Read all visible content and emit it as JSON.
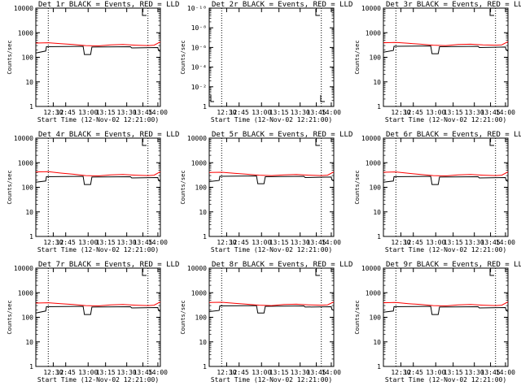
{
  "figure": {
    "background": "#ffffff",
    "events_color": "#000000",
    "lld_color": "#ff0000"
  },
  "chart_data": [
    {
      "type": "line",
      "title": "Det 1r BLACK = Events, RED = LLD",
      "xlabel": "Start Time (12-Nov-02 12:21:00)",
      "ylabel": "Counts/sec",
      "scale": "log",
      "ylim": [
        1,
        10000
      ],
      "yticks": [
        "1",
        "10",
        "100",
        "1000",
        "10000"
      ],
      "xlim": [
        0,
        100
      ],
      "xticks": [
        "12:30",
        "12:45",
        "13:00",
        "13:15",
        "13:30",
        "13:45",
        "14:00"
      ],
      "xtick_pos": [
        14,
        24,
        42,
        56,
        73,
        86,
        98
      ],
      "vlines": [
        10,
        90
      ],
      "series": [
        {
          "name": "Events",
          "x": [
            0,
            8,
            8.5,
            38,
            39,
            44,
            45,
            76,
            77,
            98,
            98.5,
            100
          ],
          "y": [
            150,
            180,
            270,
            280,
            130,
            130,
            260,
            270,
            240,
            250,
            190,
            170
          ]
        },
        {
          "name": "LLD",
          "x": [
            0,
            10,
            20,
            30,
            40,
            50,
            60,
            70,
            80,
            90,
            95,
            100
          ],
          "y": [
            380,
            390,
            360,
            330,
            300,
            290,
            320,
            330,
            310,
            300,
            310,
            420
          ]
        }
      ]
    },
    {
      "type": "line",
      "title": "Det 2r BLACK = Events, RED = LLD",
      "xlabel": "Start Time (12-Nov-02 12:21:00)",
      "ylabel": "Counts/sec",
      "scale": "log",
      "ylim": [
        1,
        1e-10
      ],
      "yticks": [
        "1",
        "10⁻²",
        "10⁻⁴",
        "10⁻⁶",
        "10⁻⁸",
        "10⁻¹⁰"
      ],
      "xlim": [
        0,
        100
      ],
      "xticks": [
        "12:30",
        "12:45",
        "13:00",
        "13:15",
        "13:30",
        "13:45",
        "14:00"
      ],
      "xtick_pos": [
        14,
        24,
        42,
        56,
        73,
        86,
        98
      ],
      "vlines": [
        10,
        90
      ],
      "series": []
    },
    {
      "type": "line",
      "title": "Det 3r BLACK = Events, RED = LLD",
      "xlabel": "Start Time (12-Nov-02 12:21:00)",
      "ylabel": "Counts/sec",
      "scale": "log",
      "ylim": [
        1,
        10000
      ],
      "yticks": [
        "1",
        "10",
        "100",
        "1000",
        "10000"
      ],
      "xlim": [
        0,
        100
      ],
      "xticks": [
        "12:30",
        "12:45",
        "13:00",
        "13:15",
        "13:30",
        "13:45",
        "14:00"
      ],
      "xtick_pos": [
        14,
        24,
        42,
        56,
        73,
        86,
        98
      ],
      "vlines": [
        10,
        90
      ],
      "series": [
        {
          "name": "Events",
          "x": [
            0,
            8,
            8.5,
            38,
            39,
            44,
            45,
            76,
            77,
            98,
            98.5,
            100
          ],
          "y": [
            160,
            190,
            280,
            290,
            140,
            140,
            270,
            280,
            250,
            260,
            200,
            180
          ]
        },
        {
          "name": "LLD",
          "x": [
            0,
            10,
            20,
            30,
            40,
            50,
            60,
            70,
            80,
            90,
            95,
            100
          ],
          "y": [
            390,
            400,
            370,
            340,
            310,
            300,
            330,
            340,
            320,
            310,
            320,
            430
          ]
        }
      ]
    },
    {
      "type": "line",
      "title": "Det 4r BLACK = Events, RED = LLD",
      "xlabel": "Start Time (12-Nov-02 12:21:00)",
      "ylabel": "Counts/sec",
      "scale": "log",
      "ylim": [
        1,
        10000
      ],
      "yticks": [
        "1",
        "10",
        "100",
        "1000",
        "10000"
      ],
      "xlim": [
        0,
        100
      ],
      "xticks": [
        "12:30",
        "12:45",
        "13:00",
        "13:15",
        "13:30",
        "13:45",
        "14:00"
      ],
      "xtick_pos": [
        14,
        24,
        42,
        56,
        73,
        86,
        98
      ],
      "vlines": [
        10,
        90
      ],
      "series": [
        {
          "name": "Events",
          "x": [
            0,
            8,
            8.5,
            38,
            39,
            44,
            45,
            76,
            77,
            98,
            98.5,
            100
          ],
          "y": [
            160,
            180,
            270,
            280,
            130,
            130,
            260,
            270,
            240,
            250,
            190,
            170
          ]
        },
        {
          "name": "LLD",
          "x": [
            0,
            10,
            20,
            30,
            40,
            50,
            60,
            70,
            80,
            90,
            95,
            100
          ],
          "y": [
            420,
            430,
            380,
            340,
            300,
            290,
            320,
            330,
            310,
            300,
            310,
            430
          ]
        }
      ]
    },
    {
      "type": "line",
      "title": "Det 5r BLACK = Events, RED = LLD",
      "xlabel": "Start Time (12-Nov-02 12:21:00)",
      "ylabel": "Counts/sec",
      "scale": "log",
      "ylim": [
        1,
        10000
      ],
      "yticks": [
        "1",
        "10",
        "100",
        "1000",
        "10000"
      ],
      "xlim": [
        0,
        100
      ],
      "xticks": [
        "12:30",
        "12:45",
        "13:00",
        "13:15",
        "13:30",
        "13:45",
        "14:00"
      ],
      "xtick_pos": [
        14,
        24,
        42,
        56,
        73,
        86,
        98
      ],
      "vlines": [
        10,
        90
      ],
      "series": [
        {
          "name": "Events",
          "x": [
            0,
            8,
            8.5,
            38,
            39,
            44,
            45,
            76,
            77,
            98,
            98.5,
            100
          ],
          "y": [
            170,
            190,
            280,
            290,
            140,
            140,
            270,
            280,
            250,
            260,
            200,
            180
          ]
        },
        {
          "name": "LLD",
          "x": [
            0,
            10,
            20,
            30,
            40,
            50,
            60,
            70,
            80,
            90,
            95,
            100
          ],
          "y": [
            400,
            410,
            370,
            340,
            310,
            300,
            320,
            330,
            310,
            300,
            310,
            420
          ]
        }
      ]
    },
    {
      "type": "line",
      "title": "Det 6r BLACK = Events, RED = LLD",
      "xlabel": "Start Time (12-Nov-02 12:21:00)",
      "ylabel": "Counts/sec",
      "scale": "log",
      "ylim": [
        1,
        10000
      ],
      "yticks": [
        "1",
        "10",
        "100",
        "1000",
        "10000"
      ],
      "xlim": [
        0,
        100
      ],
      "xticks": [
        "12:30",
        "12:45",
        "13:00",
        "13:15",
        "13:30",
        "13:45",
        "14:00"
      ],
      "xtick_pos": [
        14,
        24,
        42,
        56,
        73,
        86,
        98
      ],
      "vlines": [
        10,
        90
      ],
      "series": [
        {
          "name": "Events",
          "x": [
            0,
            8,
            8.5,
            38,
            39,
            44,
            45,
            76,
            77,
            98,
            98.5,
            100
          ],
          "y": [
            160,
            180,
            270,
            280,
            130,
            130,
            260,
            270,
            240,
            250,
            190,
            170
          ]
        },
        {
          "name": "LLD",
          "x": [
            0,
            10,
            20,
            30,
            40,
            50,
            60,
            70,
            80,
            90,
            95,
            100
          ],
          "y": [
            410,
            420,
            370,
            330,
            300,
            290,
            320,
            330,
            310,
            300,
            310,
            420
          ]
        }
      ]
    },
    {
      "type": "line",
      "title": "Det 7r BLACK = Events, RED = LLD",
      "xlabel": "Start Time (12-Nov-02 12:21:00)",
      "ylabel": "Counts/sec",
      "scale": "log",
      "ylim": [
        1,
        10000
      ],
      "yticks": [
        "1",
        "10",
        "100",
        "1000",
        "10000"
      ],
      "xlim": [
        0,
        100
      ],
      "xticks": [
        "12:30",
        "12:45",
        "13:00",
        "13:15",
        "13:30",
        "13:45",
        "14:00"
      ],
      "xtick_pos": [
        14,
        24,
        42,
        56,
        73,
        86,
        98
      ],
      "vlines": [
        10,
        90
      ],
      "series": [
        {
          "name": "Events",
          "x": [
            0,
            8,
            8.5,
            38,
            39,
            44,
            45,
            76,
            77,
            98,
            98.5,
            100
          ],
          "y": [
            150,
            180,
            270,
            280,
            130,
            130,
            260,
            270,
            240,
            250,
            190,
            170
          ]
        },
        {
          "name": "LLD",
          "x": [
            0,
            10,
            20,
            30,
            40,
            50,
            60,
            70,
            80,
            90,
            95,
            100
          ],
          "y": [
            380,
            390,
            360,
            330,
            300,
            290,
            320,
            330,
            310,
            300,
            310,
            420
          ]
        }
      ]
    },
    {
      "type": "line",
      "title": "Det 8r BLACK = Events, RED = LLD",
      "xlabel": "Start Time (12-Nov-02 12:21:00)",
      "ylabel": "Counts/sec",
      "scale": "log",
      "ylim": [
        1,
        10000
      ],
      "yticks": [
        "1",
        "10",
        "100",
        "1000",
        "10000"
      ],
      "xlim": [
        0,
        100
      ],
      "xticks": [
        "12:30",
        "12:45",
        "13:00",
        "13:15",
        "13:30",
        "13:45",
        "14:00"
      ],
      "xtick_pos": [
        14,
        24,
        42,
        56,
        73,
        86,
        98
      ],
      "vlines": [
        10,
        90
      ],
      "series": [
        {
          "name": "Events",
          "x": [
            0,
            8,
            8.5,
            38,
            39,
            44,
            45,
            76,
            77,
            98,
            98.5,
            100
          ],
          "y": [
            170,
            190,
            290,
            300,
            150,
            150,
            280,
            290,
            260,
            270,
            210,
            190
          ]
        },
        {
          "name": "LLD",
          "x": [
            0,
            10,
            20,
            30,
            40,
            50,
            60,
            70,
            80,
            90,
            95,
            100
          ],
          "y": [
            400,
            410,
            370,
            340,
            310,
            300,
            330,
            340,
            320,
            310,
            320,
            420
          ]
        }
      ]
    },
    {
      "type": "line",
      "title": "Det 9r BLACK = Events, RED = LLD",
      "xlabel": "Start Time (12-Nov-02 12:21:00)",
      "ylabel": "Counts/sec",
      "scale": "log",
      "ylim": [
        1,
        10000
      ],
      "yticks": [
        "1",
        "10",
        "100",
        "1000",
        "10000"
      ],
      "xlim": [
        0,
        100
      ],
      "xticks": [
        "12:30",
        "12:45",
        "13:00",
        "13:15",
        "13:30",
        "13:45",
        "14:00"
      ],
      "xtick_pos": [
        14,
        24,
        42,
        56,
        73,
        86,
        98
      ],
      "vlines": [
        10,
        90
      ],
      "series": [
        {
          "name": "Events",
          "x": [
            0,
            8,
            8.5,
            38,
            39,
            44,
            45,
            76,
            77,
            98,
            98.5,
            100
          ],
          "y": [
            160,
            180,
            270,
            280,
            130,
            130,
            260,
            270,
            240,
            250,
            190,
            170
          ]
        },
        {
          "name": "LLD",
          "x": [
            0,
            10,
            20,
            30,
            40,
            50,
            60,
            70,
            80,
            90,
            95,
            100
          ],
          "y": [
            390,
            400,
            360,
            330,
            300,
            290,
            320,
            330,
            310,
            300,
            310,
            420
          ]
        }
      ]
    }
  ]
}
